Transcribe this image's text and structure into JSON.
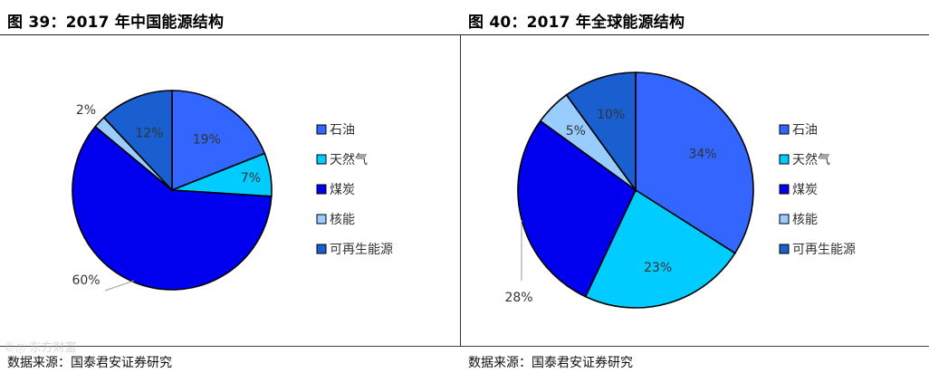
{
  "chart_data": [
    {
      "type": "pie",
      "title": "图 39：2017 年中国能源结构",
      "source": "数据来源：国泰君安证券研究",
      "categories": [
        "石油",
        "天然气",
        "煤炭",
        "核能",
        "可再生能源"
      ],
      "values": [
        19,
        7,
        60,
        2,
        12
      ],
      "labels": [
        "19%",
        "7%",
        "60%",
        "2%",
        "12%"
      ],
      "colors": [
        "#3366ff",
        "#00ccff",
        "#0000ee",
        "#99ccff",
        "#1a5fd0"
      ],
      "legend_position": "right"
    },
    {
      "type": "pie",
      "title": "图 40：2017 年全球能源结构",
      "source": "数据来源：国泰君安证券研究",
      "categories": [
        "石油",
        "天然气",
        "煤炭",
        "核能",
        "可再生能源"
      ],
      "values": [
        34,
        23,
        28,
        5,
        10
      ],
      "labels": [
        "34%",
        "23%",
        "28%",
        "5%",
        "10%"
      ],
      "colors": [
        "#3366ff",
        "#00ccff",
        "#0000ee",
        "#99ccff",
        "#1a5fd0"
      ],
      "legend_position": "right"
    }
  ],
  "watermark": "©◎ 东方财富"
}
